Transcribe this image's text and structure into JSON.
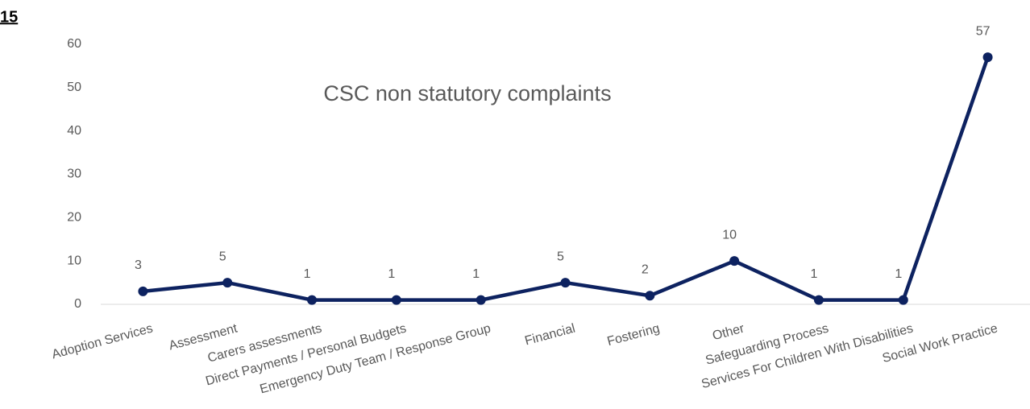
{
  "chart_data": {
    "type": "line",
    "title": "CSC non statutory complaints",
    "annotations": [
      "15"
    ],
    "categories": [
      "Adoption Services",
      "Assessment",
      "Carers assessments",
      "Direct Payments / Personal Budgets",
      "Emergency Duty Team / Response Group",
      "Financial",
      "Fostering",
      "Other",
      "Safeguarding Process",
      "Services For Children With Disabilities",
      "Social Work Practice"
    ],
    "series": [
      {
        "name": "CSC non statutory complaints",
        "color": "#0d2260",
        "values": [
          3,
          5,
          1,
          1,
          1,
          5,
          2,
          10,
          1,
          1,
          57
        ]
      }
    ],
    "ylim": [
      0,
      60
    ],
    "yticks": [
      0,
      10,
      20,
      30,
      40,
      50,
      60
    ],
    "grid": false,
    "data_labels": true
  }
}
